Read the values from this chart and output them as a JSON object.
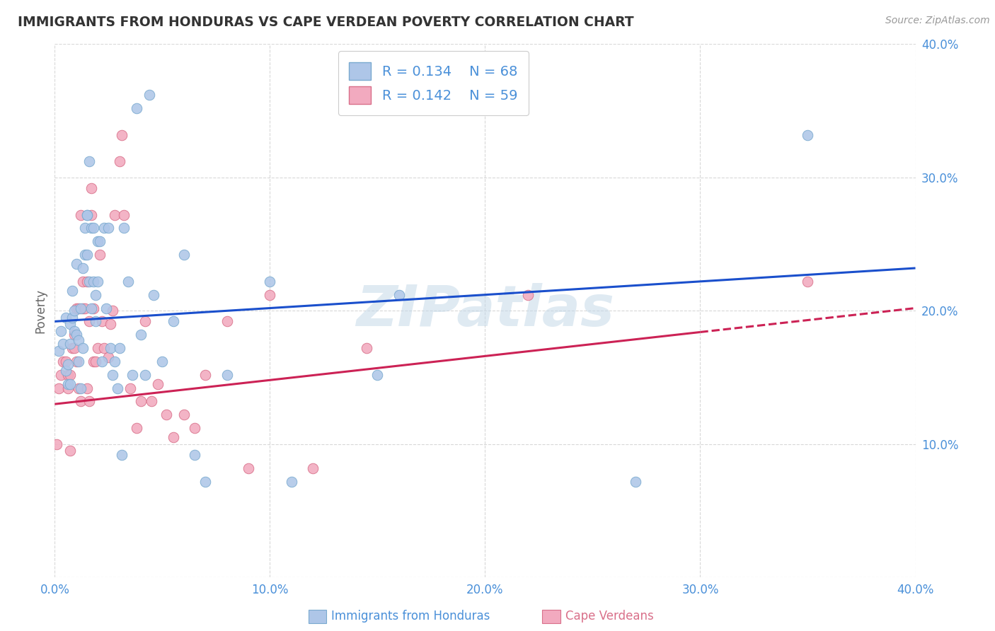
{
  "title": "IMMIGRANTS FROM HONDURAS VS CAPE VERDEAN POVERTY CORRELATION CHART",
  "source": "Source: ZipAtlas.com",
  "ylabel_label": "Poverty",
  "xlim": [
    0.0,
    0.4
  ],
  "ylim": [
    0.0,
    0.4
  ],
  "xticks": [
    0.0,
    0.1,
    0.2,
    0.3,
    0.4
  ],
  "yticks": [
    0.0,
    0.1,
    0.2,
    0.3,
    0.4
  ],
  "xtick_labels": [
    "0.0%",
    "10.0%",
    "20.0%",
    "30.0%",
    "40.0%"
  ],
  "ytick_labels": [
    "",
    "10.0%",
    "20.0%",
    "30.0%",
    "40.0%"
  ],
  "background_color": "#ffffff",
  "grid_color": "#d8d8d8",
  "title_color": "#333333",
  "axis_color": "#4a90d9",
  "legend_R1": "R = 0.134",
  "legend_N1": "N = 68",
  "legend_R2": "R = 0.142",
  "legend_N2": "N = 59",
  "honduras_color": "#aec6e8",
  "honduras_edge": "#7aaacf",
  "capeverde_color": "#f2aabf",
  "capeverde_edge": "#d9708a",
  "trend1_color": "#1a4fcc",
  "trend2_color": "#cc2255",
  "watermark_color": "#c5d9e8",
  "honduras_x": [
    0.002,
    0.003,
    0.004,
    0.005,
    0.005,
    0.006,
    0.006,
    0.007,
    0.007,
    0.007,
    0.008,
    0.008,
    0.009,
    0.009,
    0.01,
    0.01,
    0.011,
    0.011,
    0.012,
    0.012,
    0.013,
    0.013,
    0.014,
    0.014,
    0.015,
    0.015,
    0.015,
    0.016,
    0.016,
    0.017,
    0.017,
    0.018,
    0.018,
    0.019,
    0.019,
    0.02,
    0.02,
    0.021,
    0.022,
    0.023,
    0.024,
    0.025,
    0.026,
    0.027,
    0.028,
    0.029,
    0.03,
    0.031,
    0.032,
    0.034,
    0.036,
    0.038,
    0.04,
    0.042,
    0.044,
    0.046,
    0.05,
    0.055,
    0.06,
    0.065,
    0.07,
    0.08,
    0.1,
    0.11,
    0.15,
    0.16,
    0.27,
    0.35
  ],
  "honduras_y": [
    0.17,
    0.185,
    0.175,
    0.195,
    0.155,
    0.16,
    0.145,
    0.145,
    0.175,
    0.19,
    0.215,
    0.195,
    0.2,
    0.185,
    0.235,
    0.182,
    0.178,
    0.162,
    0.142,
    0.202,
    0.172,
    0.232,
    0.262,
    0.242,
    0.242,
    0.272,
    0.272,
    0.312,
    0.222,
    0.202,
    0.262,
    0.262,
    0.222,
    0.212,
    0.192,
    0.252,
    0.222,
    0.252,
    0.162,
    0.262,
    0.202,
    0.262,
    0.172,
    0.152,
    0.162,
    0.142,
    0.172,
    0.092,
    0.262,
    0.222,
    0.152,
    0.352,
    0.182,
    0.152,
    0.362,
    0.212,
    0.162,
    0.192,
    0.242,
    0.092,
    0.072,
    0.152,
    0.222,
    0.072,
    0.152,
    0.212,
    0.072,
    0.332
  ],
  "capeverde_x": [
    0.001,
    0.002,
    0.003,
    0.004,
    0.005,
    0.006,
    0.006,
    0.007,
    0.007,
    0.008,
    0.009,
    0.009,
    0.01,
    0.01,
    0.011,
    0.011,
    0.012,
    0.012,
    0.013,
    0.013,
    0.014,
    0.015,
    0.015,
    0.016,
    0.016,
    0.017,
    0.017,
    0.018,
    0.018,
    0.019,
    0.02,
    0.021,
    0.022,
    0.023,
    0.025,
    0.026,
    0.027,
    0.028,
    0.03,
    0.031,
    0.032,
    0.035,
    0.038,
    0.04,
    0.042,
    0.045,
    0.048,
    0.052,
    0.055,
    0.06,
    0.065,
    0.07,
    0.08,
    0.09,
    0.1,
    0.12,
    0.145,
    0.22,
    0.35
  ],
  "capeverde_y": [
    0.1,
    0.142,
    0.152,
    0.162,
    0.162,
    0.152,
    0.142,
    0.095,
    0.152,
    0.172,
    0.172,
    0.182,
    0.162,
    0.202,
    0.202,
    0.142,
    0.132,
    0.272,
    0.202,
    0.222,
    0.202,
    0.222,
    0.142,
    0.192,
    0.132,
    0.292,
    0.272,
    0.202,
    0.162,
    0.162,
    0.172,
    0.242,
    0.192,
    0.172,
    0.165,
    0.19,
    0.2,
    0.272,
    0.312,
    0.332,
    0.272,
    0.142,
    0.112,
    0.132,
    0.192,
    0.132,
    0.145,
    0.122,
    0.105,
    0.122,
    0.112,
    0.152,
    0.192,
    0.082,
    0.212,
    0.082,
    0.172,
    0.212,
    0.222
  ],
  "trend1_y0": 0.192,
  "trend1_y1": 0.232,
  "trend2_y0": 0.13,
  "trend2_y1": 0.202
}
